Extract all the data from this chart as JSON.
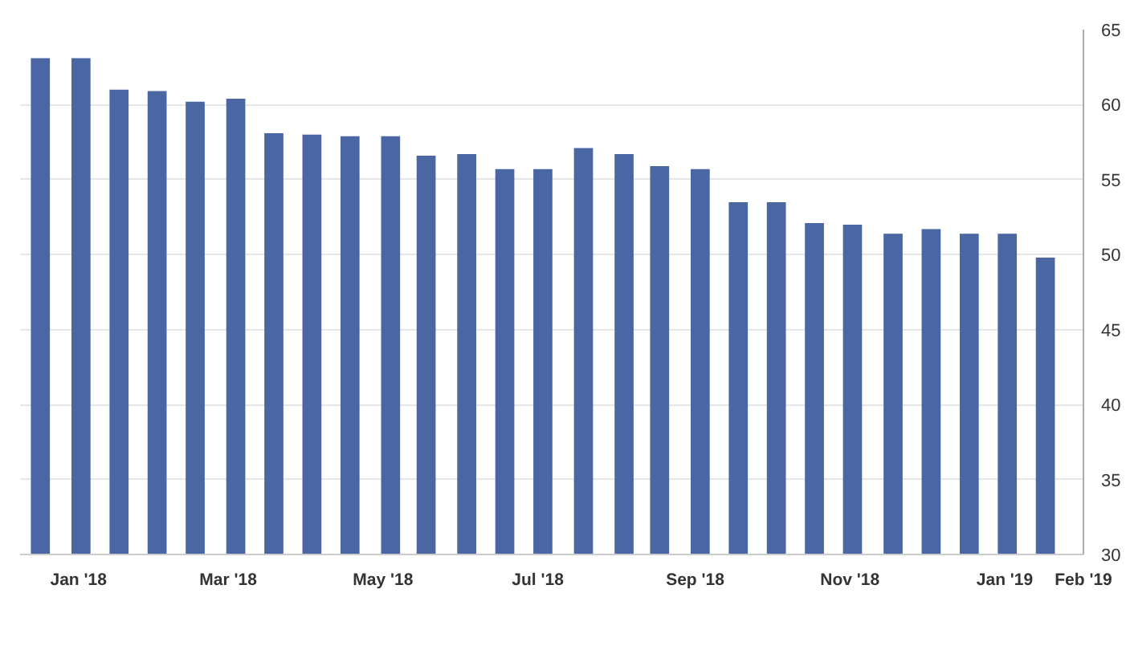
{
  "chart_data": {
    "type": "bar",
    "x": [
      "2017-12-17",
      "2018-01-02",
      "2018-01-17",
      "2018-02-01",
      "2018-02-16",
      "2018-03-04",
      "2018-03-19",
      "2018-04-03",
      "2018-04-18",
      "2018-05-04",
      "2018-05-18",
      "2018-06-03",
      "2018-06-18",
      "2018-07-03",
      "2018-07-19",
      "2018-08-04",
      "2018-08-18",
      "2018-09-03",
      "2018-09-18",
      "2018-10-03",
      "2018-10-18",
      "2018-11-02",
      "2018-11-18",
      "2018-12-03",
      "2018-12-18",
      "2019-01-02",
      "2019-01-17"
    ],
    "values": [
      63.1,
      63.1,
      61.0,
      60.9,
      60.2,
      60.4,
      58.1,
      58.0,
      57.9,
      57.9,
      56.6,
      56.7,
      55.7,
      55.7,
      57.1,
      56.7,
      55.9,
      55.7,
      53.5,
      53.5,
      52.1,
      52.0,
      51.4,
      51.7,
      51.4,
      51.4,
      49.8
    ],
    "color": "#4a67a3",
    "xlim": [
      "2017-12-09",
      "2019-02-01"
    ],
    "xticks": [
      {
        "value": "2018-01-01",
        "label": "Jan '18"
      },
      {
        "value": "2018-03-01",
        "label": "Mar '18"
      },
      {
        "value": "2018-05-01",
        "label": "May '18"
      },
      {
        "value": "2018-07-01",
        "label": "Jul '18"
      },
      {
        "value": "2018-09-01",
        "label": "Sep '18"
      },
      {
        "value": "2018-11-01",
        "label": "Nov '18"
      },
      {
        "value": "2019-01-01",
        "label": "Jan '19"
      },
      {
        "value": "2019-02-01",
        "label": "Feb '19"
      }
    ],
    "ylim": [
      30,
      65
    ],
    "yticks": [
      30,
      35,
      40,
      45,
      50,
      55,
      60,
      65
    ],
    "grid": true
  }
}
